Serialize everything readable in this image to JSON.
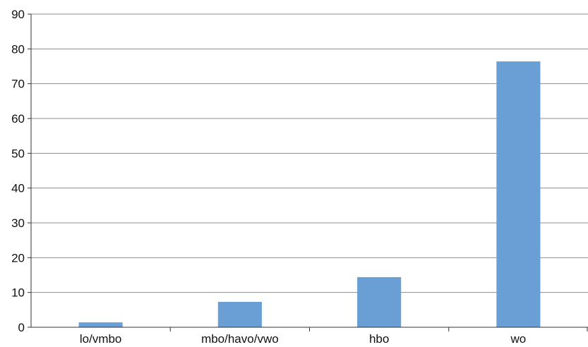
{
  "chart_data": {
    "type": "bar",
    "title": "",
    "xlabel": "",
    "ylabel": "",
    "categories": [
      "lo/vmbo",
      "mbo/havo/vwo",
      "hbo",
      "wo"
    ],
    "values": [
      1.4,
      7.3,
      14.4,
      76.4
    ],
    "ylim": [
      0,
      90
    ],
    "yticks": [
      0,
      10,
      20,
      30,
      40,
      50,
      60,
      70,
      80,
      90
    ],
    "grid": true,
    "legend": "none",
    "colors": {
      "bar": "#6a9fd6",
      "grid": "#8c8c8c",
      "axis": "#333333",
      "text": "#111111"
    }
  }
}
